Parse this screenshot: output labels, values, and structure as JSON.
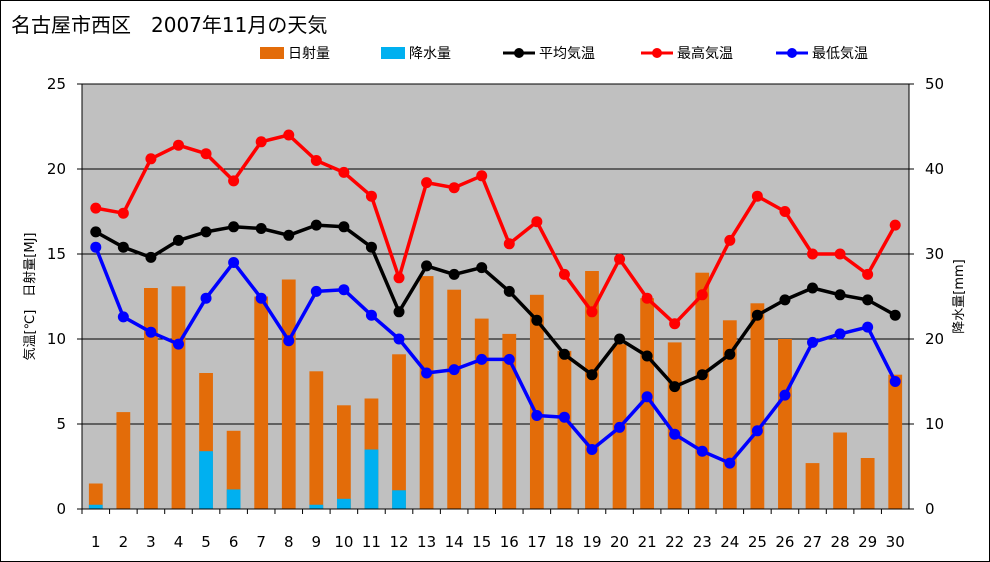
{
  "title": "名古屋市西区　2007年11月の天気",
  "chart_data": {
    "type": "bar+line",
    "title": "名古屋市西区　2007年11月の天気",
    "ylabel_left": "気温[℃]　日射量[MJ]",
    "ylabel_right": "降水量[mm]",
    "ylim_left": [
      0,
      25
    ],
    "ylim_right": [
      0,
      50
    ],
    "yticks_left": [
      0,
      5,
      10,
      15,
      20,
      25
    ],
    "yticks_right": [
      0,
      10,
      20,
      30,
      40,
      50
    ],
    "grid": true,
    "legend_position": "top",
    "categories": [
      "1",
      "2",
      "3",
      "4",
      "5",
      "6",
      "7",
      "8",
      "9",
      "10",
      "11",
      "12",
      "13",
      "14",
      "15",
      "16",
      "17",
      "18",
      "19",
      "20",
      "21",
      "22",
      "23",
      "24",
      "25",
      "26",
      "27",
      "28",
      "29",
      "30"
    ],
    "series": [
      {
        "name": "日射量",
        "kind": "bar",
        "axis": "left",
        "color": "#E36C09",
        "values": [
          1.5,
          5.7,
          13.0,
          13.1,
          8.0,
          4.6,
          12.5,
          13.5,
          8.1,
          6.1,
          6.5,
          9.1,
          13.7,
          12.9,
          11.2,
          10.3,
          12.6,
          9.3,
          14.0,
          9.7,
          12.4,
          9.8,
          13.9,
          11.1,
          12.1,
          10.0,
          2.7,
          4.5,
          3.0,
          7.9
        ]
      },
      {
        "name": "降水量",
        "kind": "bar",
        "axis": "right",
        "color": "#00B0F0",
        "values": [
          0.5,
          0,
          0,
          0,
          6.8,
          2.3,
          0,
          0,
          0.5,
          1.2,
          7.0,
          2.2,
          0,
          0,
          0,
          0,
          0,
          0,
          0,
          0,
          0,
          0,
          0,
          0,
          0,
          0,
          0,
          0,
          0,
          0
        ]
      },
      {
        "name": "平均気温",
        "kind": "line",
        "axis": "left",
        "color": "#000000",
        "values": [
          16.3,
          15.4,
          14.8,
          15.8,
          16.3,
          16.6,
          16.5,
          16.1,
          16.7,
          16.6,
          15.4,
          11.6,
          14.3,
          13.8,
          14.2,
          12.8,
          11.1,
          9.1,
          7.9,
          10.0,
          9.0,
          7.2,
          7.9,
          9.1,
          11.4,
          12.3,
          13.0,
          12.6,
          12.3,
          11.4
        ]
      },
      {
        "name": "最高気温",
        "kind": "line",
        "axis": "left",
        "color": "#FF0000",
        "values": [
          17.7,
          17.4,
          20.6,
          21.4,
          20.9,
          19.3,
          21.6,
          22.0,
          20.5,
          19.8,
          18.4,
          13.6,
          19.2,
          18.9,
          19.6,
          15.6,
          16.9,
          13.8,
          11.6,
          14.7,
          12.4,
          10.9,
          12.6,
          15.8,
          18.4,
          17.5,
          15.0,
          15.0,
          13.8,
          16.7
        ]
      },
      {
        "name": "最低気温",
        "kind": "line",
        "axis": "left",
        "color": "#0000FF",
        "values": [
          15.4,
          11.3,
          10.4,
          9.7,
          12.4,
          14.5,
          12.4,
          9.9,
          12.8,
          12.9,
          11.4,
          10.0,
          8.0,
          8.2,
          8.8,
          8.8,
          5.5,
          5.4,
          3.5,
          4.8,
          6.6,
          4.4,
          3.4,
          2.7,
          4.6,
          6.7,
          9.8,
          10.3,
          10.7,
          7.5
        ]
      }
    ]
  }
}
